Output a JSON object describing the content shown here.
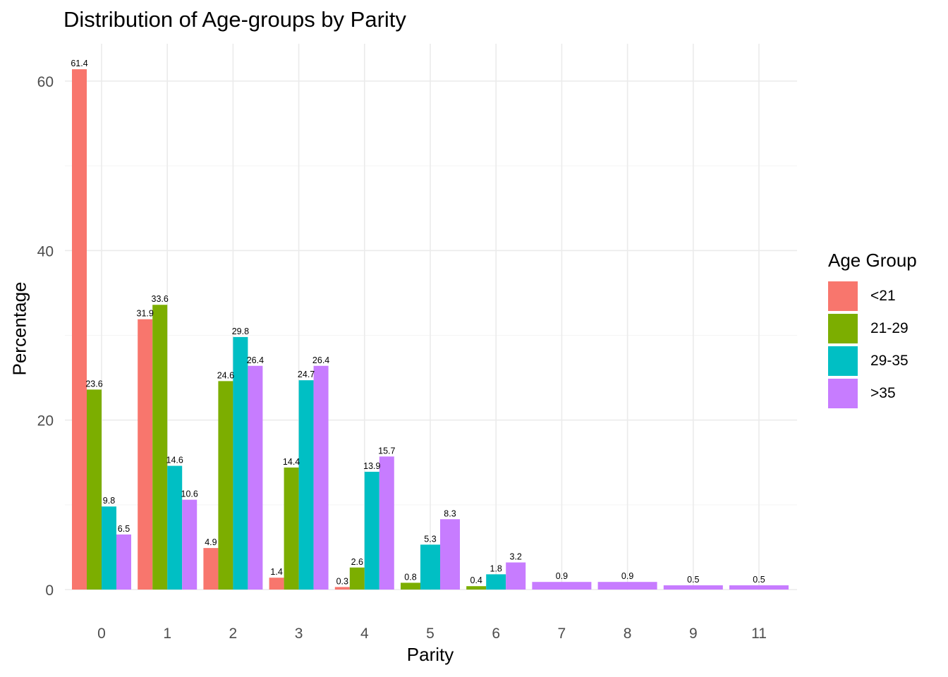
{
  "chart_data": {
    "type": "bar",
    "title": "Distribution of Age-groups by Parity",
    "xlabel": "Parity",
    "ylabel": "Percentage",
    "ylim": [
      0,
      64
    ],
    "yticks": [
      0,
      20,
      40,
      60
    ],
    "grid": true,
    "legend": {
      "title": "Age Group",
      "placement": "right"
    },
    "categories": [
      "0",
      "1",
      "2",
      "3",
      "4",
      "5",
      "6",
      "7",
      "8",
      "9",
      "11"
    ],
    "series": [
      {
        "name": "<21",
        "color": "#F8766D",
        "values": [
          61.4,
          31.9,
          4.9,
          1.4,
          0.3,
          null,
          null,
          null,
          null,
          null,
          null
        ]
      },
      {
        "name": "21-29",
        "color": "#7CAE00",
        "values": [
          23.6,
          33.6,
          24.6,
          14.4,
          2.6,
          0.8,
          0.4,
          null,
          null,
          null,
          null
        ]
      },
      {
        "name": "29-35",
        "color": "#00BFC4",
        "values": [
          9.8,
          14.6,
          29.8,
          24.7,
          13.9,
          5.3,
          1.8,
          null,
          null,
          null,
          null
        ]
      },
      {
        "name": ">35",
        "color": "#C77CFF",
        "values": [
          6.5,
          10.6,
          26.4,
          26.4,
          15.7,
          8.3,
          3.2,
          0.9,
          0.9,
          0.5,
          0.5
        ]
      }
    ]
  }
}
